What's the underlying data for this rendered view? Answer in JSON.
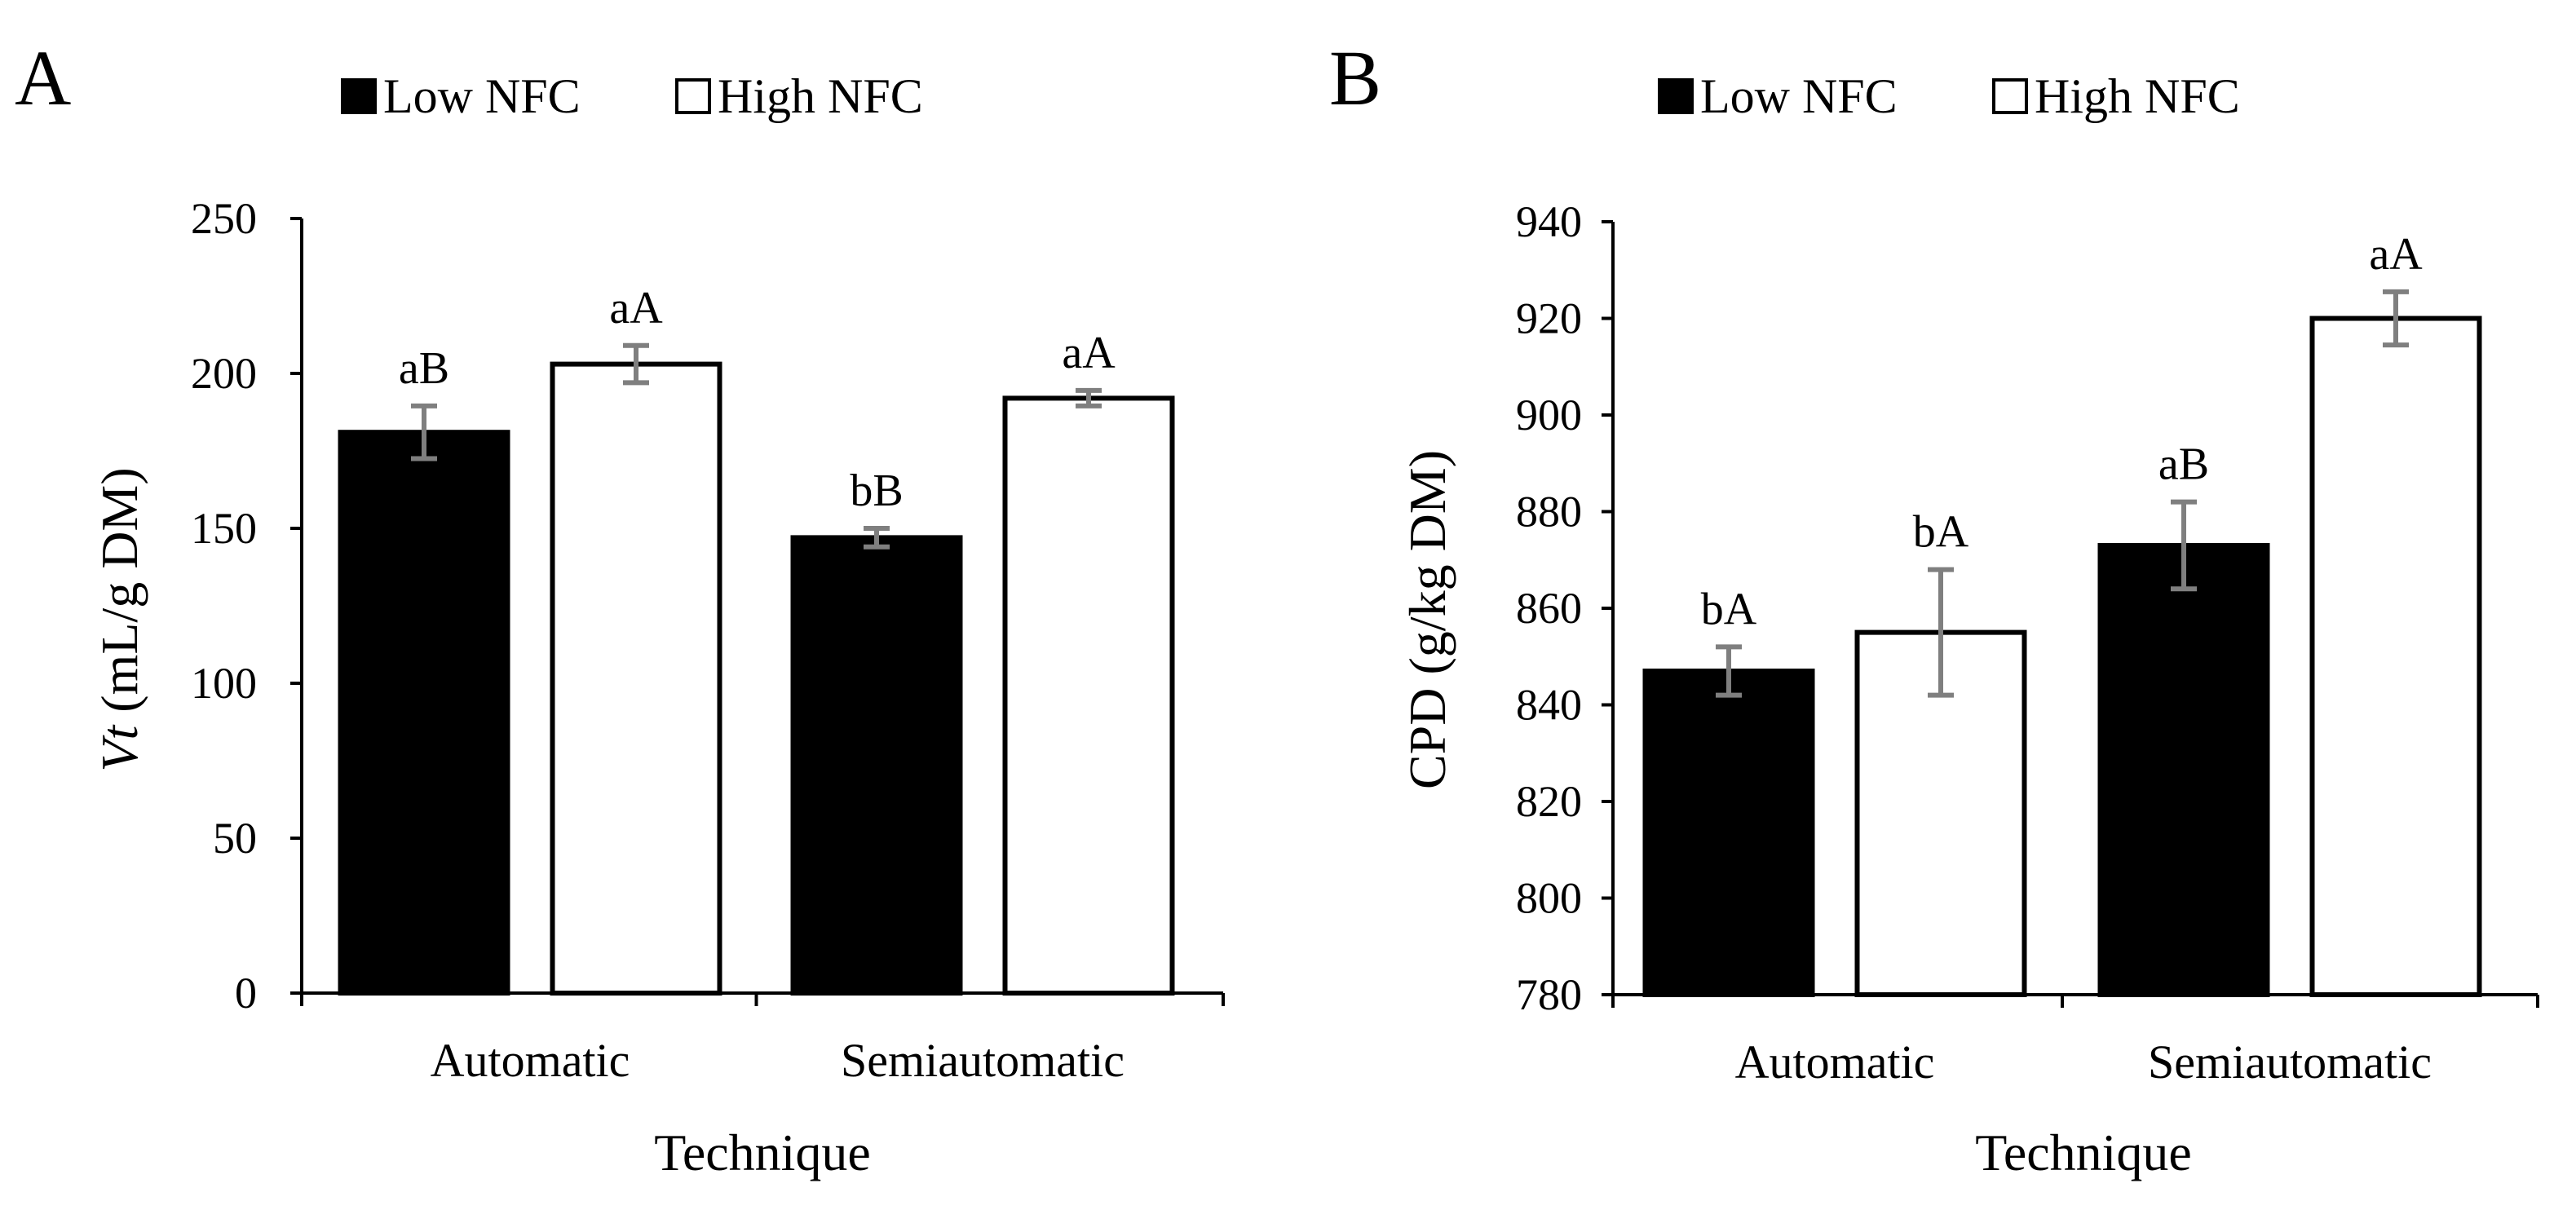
{
  "chart_data": [
    {
      "panel": "A",
      "type": "bar",
      "ylabel_italic": "Vt",
      "ylabel_rest": " (mL/g DM)",
      "xlabel": "Technique",
      "categories": [
        "Automatic",
        "Semiautomatic"
      ],
      "ylim": [
        0,
        250
      ],
      "yticks": [
        0,
        50,
        100,
        150,
        200,
        250
      ],
      "series": [
        {
          "name": "Low NFC",
          "color": "#000000",
          "values": [
            181,
            147
          ],
          "errors": [
            8.5,
            3
          ],
          "labels": [
            "aB",
            "bB"
          ]
        },
        {
          "name": "High NFC",
          "color": "#ffffff",
          "values": [
            203,
            192
          ],
          "errors": [
            6,
            2.5
          ],
          "labels": [
            "aA",
            "aA"
          ]
        }
      ],
      "legend": "top"
    },
    {
      "panel": "B",
      "type": "bar",
      "ylabel": "CPD (g/kg DM)",
      "xlabel": "Technique",
      "categories": [
        "Automatic",
        "Semiautomatic"
      ],
      "ylim": [
        780,
        940
      ],
      "yticks": [
        780,
        800,
        820,
        840,
        860,
        880,
        900,
        920,
        940
      ],
      "series": [
        {
          "name": "Low NFC",
          "color": "#000000",
          "values": [
            847,
            873
          ],
          "errors": [
            5,
            9
          ],
          "labels": [
            "bA",
            "aB"
          ]
        },
        {
          "name": "High NFC",
          "color": "#ffffff",
          "values": [
            855,
            920
          ],
          "errors": [
            13,
            5.5
          ],
          "labels": [
            "bA",
            "aA"
          ]
        }
      ],
      "legend": "top"
    }
  ]
}
